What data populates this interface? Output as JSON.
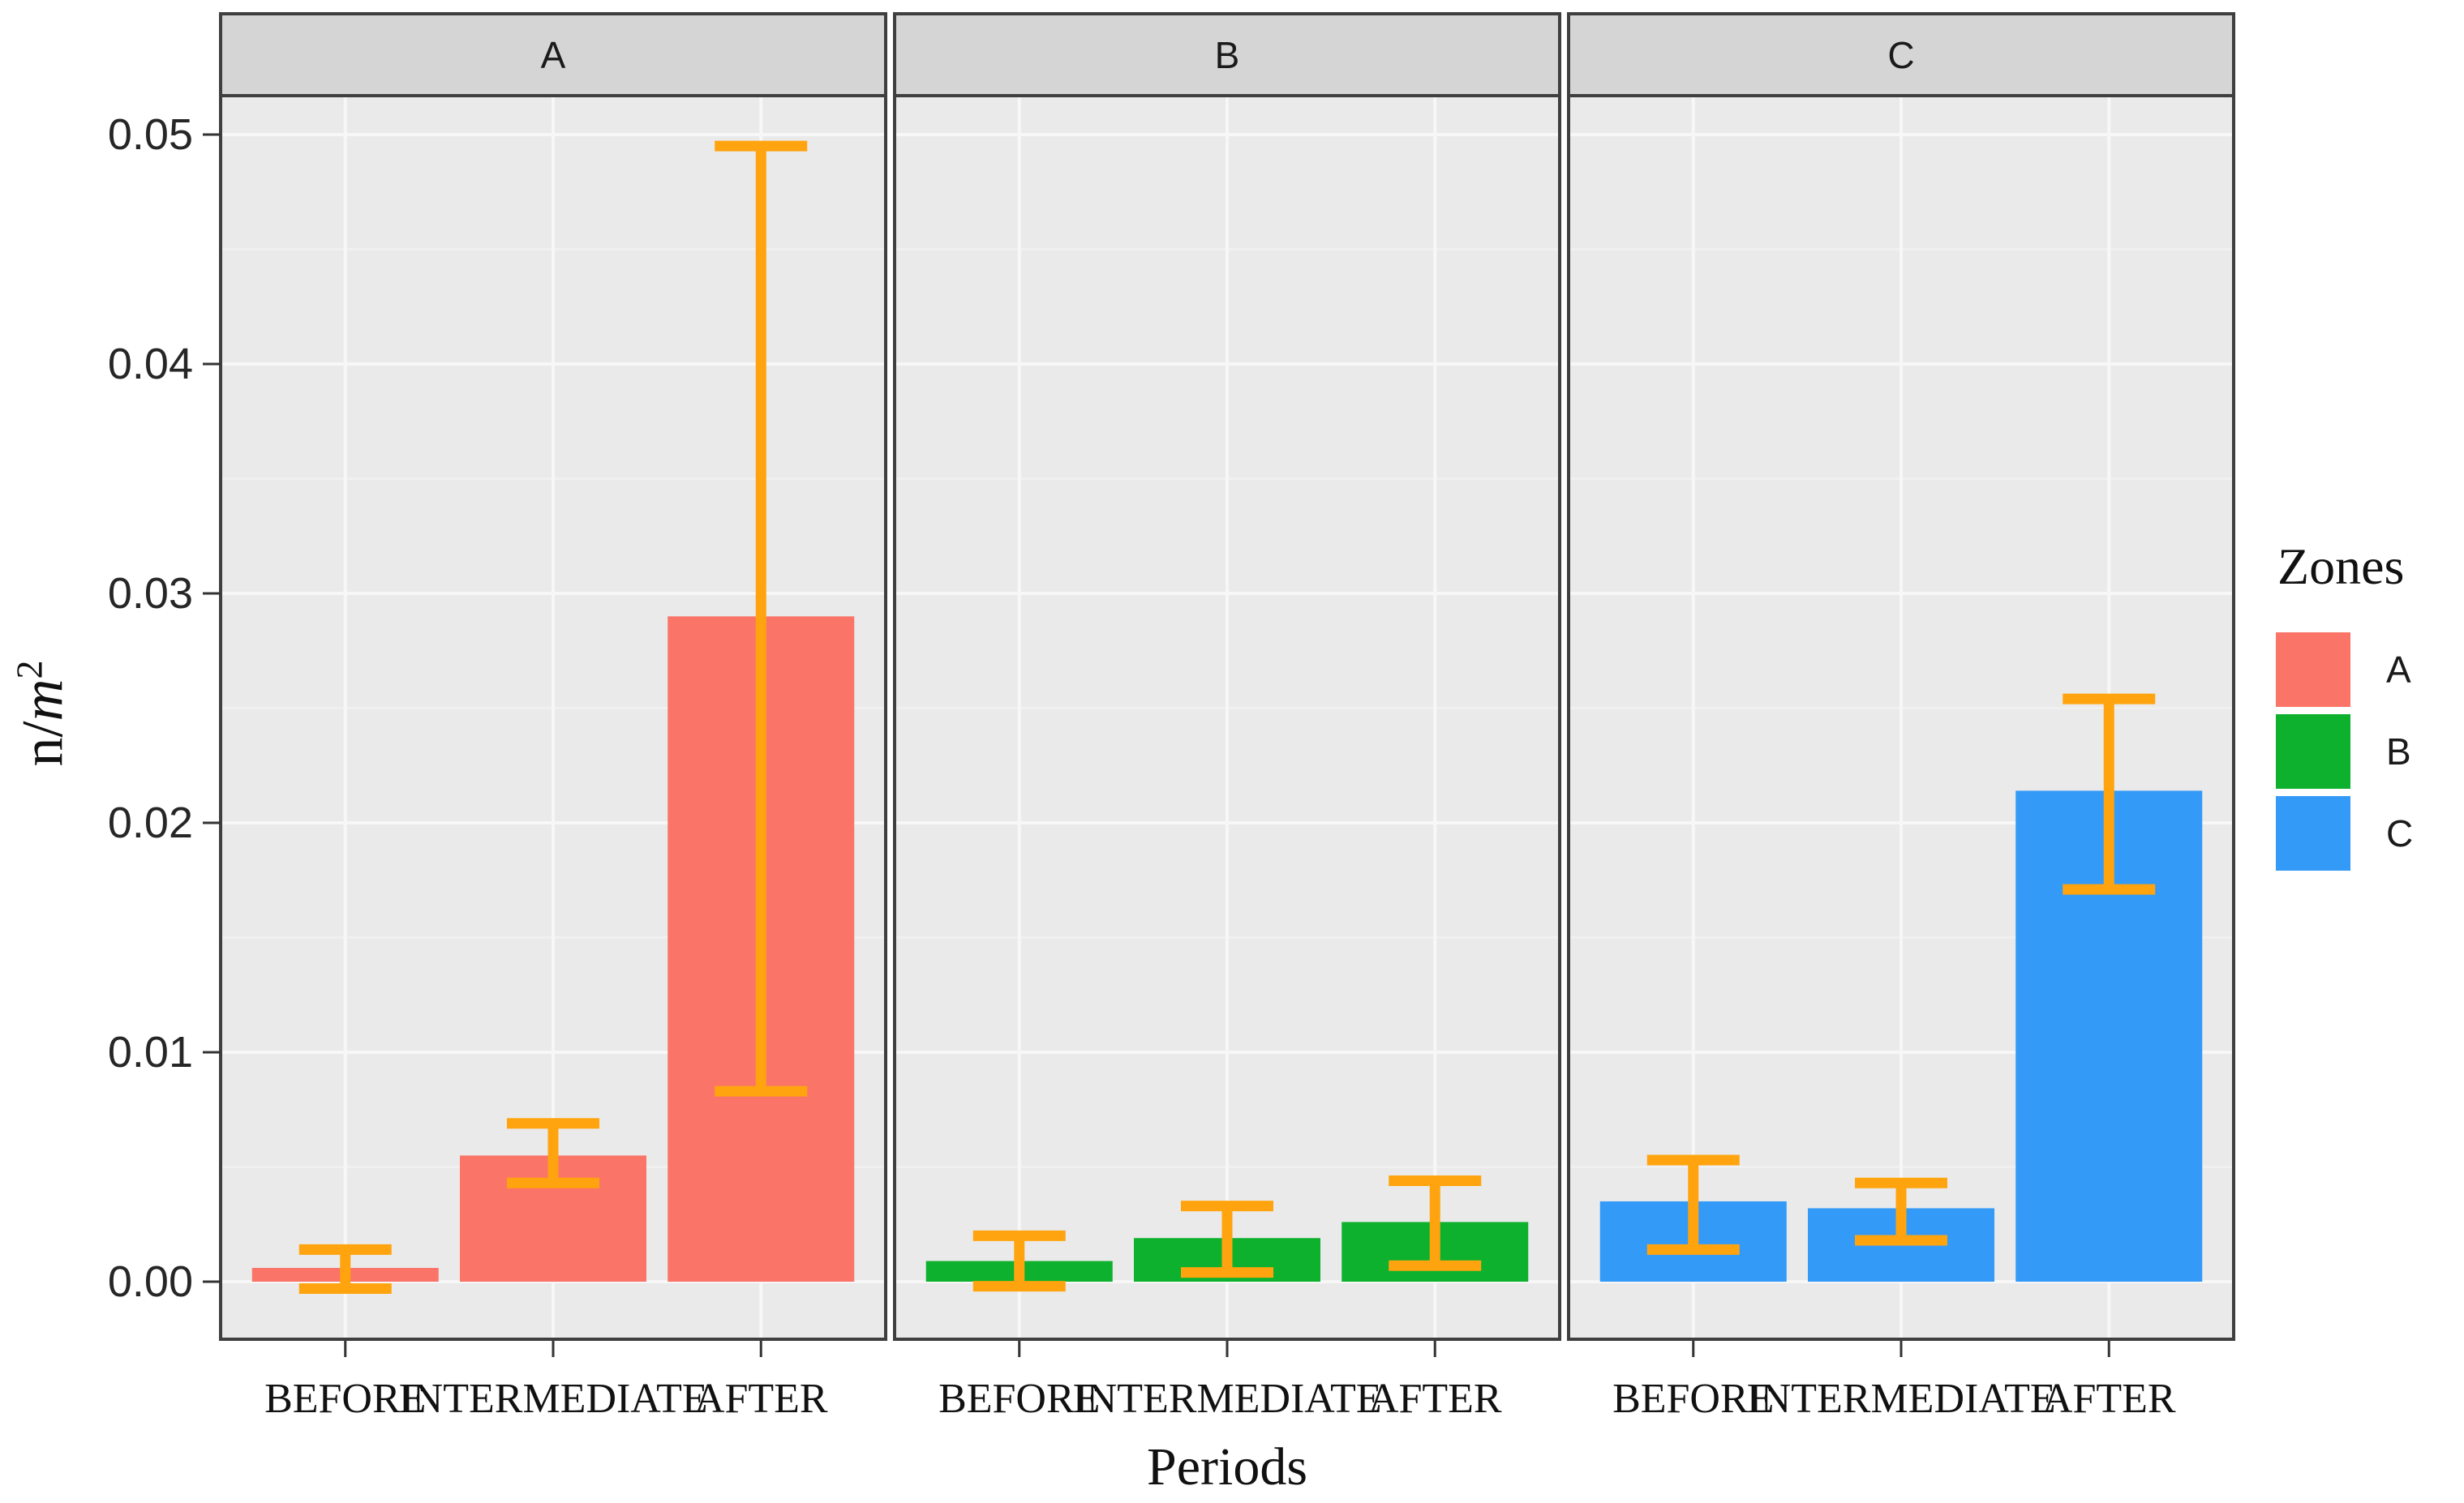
{
  "figure": {
    "xlabel": "Periods",
    "ylabel": {
      "numerator": "n/",
      "variable": "m",
      "exponent": "2"
    },
    "legend": {
      "title": "Zones",
      "items": [
        {
          "label": "A",
          "color": "#FA7468"
        },
        {
          "label": "B",
          "color": "#0DB12D"
        },
        {
          "label": "C",
          "color": "#339AF7"
        }
      ]
    }
  },
  "chart_data": {
    "type": "bar",
    "title": "",
    "xlabel": "Periods",
    "ylabel": "n/m^2",
    "facets": [
      "A",
      "B",
      "C"
    ],
    "categories": [
      "BEFORE",
      "INTERMEDIATE",
      "AFTER"
    ],
    "y_ticks": [
      "0.00",
      "0.01",
      "0.02",
      "0.03",
      "0.04",
      "0.05"
    ],
    "y_minor_ticks": [
      0.005,
      0.015,
      0.025,
      0.035,
      0.045
    ],
    "ylim": [
      -0.0025,
      0.0521
    ],
    "grid": true,
    "legend_position": "right",
    "series": [
      {
        "facet": "A",
        "zone": "A",
        "color": "#FA7468",
        "values": [
          0.0006,
          0.0055,
          0.029
        ],
        "error_low": [
          -0.0003,
          0.0043,
          0.0083
        ],
        "error_high": [
          0.0014,
          0.0069,
          0.0495
        ]
      },
      {
        "facet": "B",
        "zone": "B",
        "color": "#0DB12D",
        "values": [
          0.0009,
          0.0019,
          0.0026
        ],
        "error_low": [
          -0.0002,
          0.0004,
          0.0007
        ],
        "error_high": [
          0.002,
          0.0033,
          0.0044
        ]
      },
      {
        "facet": "C",
        "zone": "C",
        "color": "#339AF7",
        "values": [
          0.0035,
          0.0032,
          0.0214
        ],
        "error_low": [
          0.0014,
          0.0018,
          0.0171
        ],
        "error_high": [
          0.0053,
          0.0043,
          0.0254
        ]
      }
    ],
    "error_bar_color": "#FFA40E"
  },
  "colors": {
    "panel_background": "#EAEAEA",
    "strip_background": "#D5D5D5",
    "panel_border": "#3F3F3F",
    "grid_major": "#F7F7F7",
    "grid_minor": "#F0F0F0",
    "tick_mark": "#333333",
    "tick_text": "#262626",
    "strip_text": "#1A1A1A",
    "axis_text": "#111111"
  }
}
